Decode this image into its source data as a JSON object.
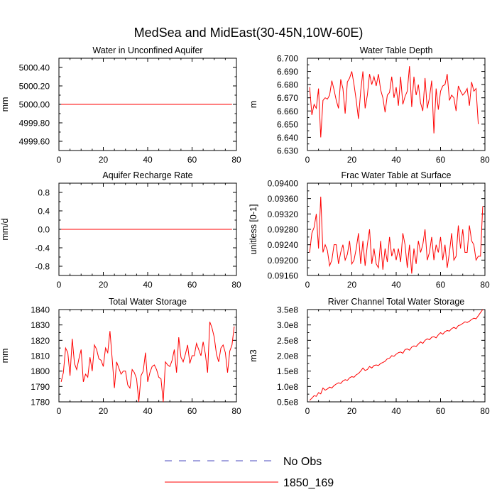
{
  "title": "MedSea and MidEast(30-45N,10W-60E)",
  "legend": [
    {
      "label": "No Obs",
      "color": "#4b4bbf",
      "dash": "dashed"
    },
    {
      "label": "1850_169",
      "color": "#ff0000",
      "dash": "solid"
    }
  ],
  "chart_data": [
    {
      "type": "line",
      "title": "Water in Unconfined Aquifer",
      "ylabel": "mm",
      "xlim": [
        0,
        80
      ],
      "xticks": [
        0,
        20,
        40,
        60,
        80
      ],
      "xtick_labels": [
        "0",
        "20",
        "40",
        "60",
        "80"
      ],
      "ylim": [
        4999.5,
        5000.5
      ],
      "yticks": [
        4999.6,
        4999.8,
        5000.0,
        5000.2,
        5000.4
      ],
      "ytick_labels": [
        "4999.60",
        "4999.80",
        "5000.00",
        "5000.20",
        "5000.40"
      ],
      "series": [
        {
          "name": "1850_169",
          "color": "#ff0000",
          "x": [
            1,
            78
          ],
          "values": [
            5000.0,
            5000.0
          ]
        }
      ]
    },
    {
      "type": "line",
      "title": "Water Table Depth",
      "ylabel": "m",
      "xlim": [
        0,
        80
      ],
      "xticks": [
        0,
        20,
        40,
        60,
        80
      ],
      "xtick_labels": [
        "0",
        "20",
        "40",
        "60",
        "80"
      ],
      "ylim": [
        6.63,
        6.7
      ],
      "yticks": [
        6.63,
        6.64,
        6.65,
        6.66,
        6.67,
        6.68,
        6.69,
        6.7
      ],
      "ytick_labels": [
        "6.630",
        "6.640",
        "6.650",
        "6.660",
        "6.670",
        "6.680",
        "6.690",
        "6.700"
      ],
      "series": [
        {
          "name": "1850_169",
          "color": "#ff0000",
          "x_start": 1,
          "values": [
            6.678,
            6.657,
            6.665,
            6.662,
            6.677,
            6.64,
            6.668,
            6.67,
            6.669,
            6.672,
            6.683,
            6.676,
            6.668,
            6.662,
            6.684,
            6.677,
            6.658,
            6.682,
            6.685,
            6.69,
            6.68,
            6.668,
            6.654,
            6.675,
            6.69,
            6.662,
            6.672,
            6.688,
            6.68,
            6.686,
            6.679,
            6.688,
            6.676,
            6.67,
            6.659,
            6.672,
            6.674,
            6.686,
            6.67,
            6.678,
            6.664,
            6.686,
            6.665,
            6.671,
            6.675,
            6.694,
            6.663,
            6.686,
            6.672,
            6.68,
            6.666,
            6.66,
            6.685,
            6.662,
            6.67,
            6.683,
            6.643,
            6.677,
            6.661,
            6.675,
            6.679,
            6.68,
            6.688,
            6.668,
            6.672,
            6.67,
            6.66,
            6.679,
            6.675,
            6.672,
            6.674,
            6.677,
            6.664,
            6.682,
            6.675,
            6.677,
            6.65
          ]
        }
      ]
    },
    {
      "type": "line",
      "title": "Aquifer Recharge Rate",
      "ylabel": "mm/d",
      "xlim": [
        0,
        80
      ],
      "xticks": [
        0,
        20,
        40,
        60,
        80
      ],
      "xtick_labels": [
        "0",
        "20",
        "40",
        "60",
        "80"
      ],
      "ylim": [
        -1.0,
        1.0
      ],
      "yticks": [
        -0.8,
        -0.4,
        0.0,
        0.4,
        0.8
      ],
      "ytick_labels": [
        "-0.8",
        "-0.4",
        "0.0",
        "0.4",
        "0.8"
      ],
      "series": [
        {
          "name": "1850_169",
          "color": "#ff0000",
          "x": [
            1,
            78
          ],
          "values": [
            0.0,
            0.0
          ]
        }
      ]
    },
    {
      "type": "line",
      "title": "Frac Water Table at Surface",
      "ylabel": "unitless [0-1]",
      "xlim": [
        0,
        80
      ],
      "xticks": [
        0,
        20,
        40,
        60,
        80
      ],
      "xtick_labels": [
        "0",
        "20",
        "40",
        "60",
        "80"
      ],
      "ylim": [
        0.0916,
        0.094
      ],
      "yticks": [
        0.0916,
        0.092,
        0.0924,
        0.0928,
        0.0932,
        0.0936,
        0.094
      ],
      "ytick_labels": [
        "0.09160",
        "0.09200",
        "0.09240",
        "0.09280",
        "0.09320",
        "0.09360",
        "0.09400"
      ],
      "series": [
        {
          "name": "1850_169",
          "color": "#ff0000",
          "x_start": 1,
          "values": [
            0.0922,
            0.0927,
            0.09285,
            0.0932,
            0.0923,
            0.09365,
            0.0922,
            0.0924,
            0.09225,
            0.09185,
            0.092,
            0.0924,
            0.0924,
            0.0919,
            0.0922,
            0.0924,
            0.092,
            0.09215,
            0.0925,
            0.0919,
            0.092,
            0.0923,
            0.0927,
            0.0919,
            0.0925,
            0.09185,
            0.0924,
            0.0928,
            0.0919,
            0.0923,
            0.0919,
            0.0918,
            0.0925,
            0.09175,
            0.0923,
            0.09195,
            0.0926,
            0.0921,
            0.0923,
            0.092,
            0.0923,
            0.09195,
            0.0927,
            0.0924,
            0.0918,
            0.0924,
            0.09165,
            0.0923,
            0.0919,
            0.0925,
            0.0922,
            0.0924,
            0.0928,
            0.092,
            0.0922,
            0.0926,
            0.092,
            0.0924,
            0.0922,
            0.0926,
            0.092,
            0.0924,
            0.0918,
            0.0922,
            0.0927,
            0.092,
            0.0921,
            0.0929,
            0.0923,
            0.0928,
            0.0922,
            0.0922,
            0.0929,
            0.0925,
            0.0924,
            0.092,
            0.0921,
            0.0921,
            0.0934
          ]
        }
      ]
    },
    {
      "type": "line",
      "title": "Total Water Storage",
      "ylabel": "mm",
      "xlim": [
        0,
        80
      ],
      "xticks": [
        0,
        20,
        40,
        60,
        80
      ],
      "xtick_labels": [
        "0",
        "20",
        "40",
        "60",
        "80"
      ],
      "ylim": [
        1780,
        1840
      ],
      "yticks": [
        1780,
        1790,
        1800,
        1810,
        1820,
        1830,
        1840
      ],
      "ytick_labels": [
        "1780",
        "1790",
        "1800",
        "1810",
        "1820",
        "1830",
        "1840"
      ],
      "series": [
        {
          "name": "1850_169",
          "color": "#ff0000",
          "x_start": 1,
          "values": [
            1793,
            1799,
            1815,
            1812,
            1797,
            1821,
            1805,
            1801,
            1808,
            1814,
            1793,
            1798,
            1796,
            1809,
            1800,
            1817,
            1814,
            1808,
            1807,
            1803,
            1815,
            1812,
            1826,
            1808,
            1789,
            1806,
            1802,
            1798,
            1800,
            1800,
            1791,
            1789,
            1801,
            1799,
            1795,
            1780,
            1797,
            1800,
            1812,
            1793,
            1799,
            1803,
            1804,
            1801,
            1796,
            1795,
            1780,
            1806,
            1804,
            1803,
            1807,
            1814,
            1799,
            1822,
            1809,
            1806,
            1811,
            1817,
            1805,
            1810,
            1810,
            1818,
            1814,
            1810,
            1819,
            1811,
            1799,
            1832,
            1828,
            1822,
            1811,
            1806,
            1815,
            1817,
            1812,
            1799,
            1813,
            1817,
            1829
          ]
        }
      ]
    },
    {
      "type": "line",
      "title": "River Channel Total Water Storage",
      "ylabel": "m3",
      "xlim": [
        0,
        80
      ],
      "xticks": [
        0,
        20,
        40,
        60,
        80
      ],
      "xtick_labels": [
        "0",
        "20",
        "40",
        "60",
        "80"
      ],
      "ylim": [
        50000000,
        350000000
      ],
      "yticks": [
        50000000,
        100000000,
        150000000,
        200000000,
        250000000,
        300000000,
        350000000
      ],
      "ytick_labels": [
        "0.5e8",
        "1.0e8",
        "1.5e8",
        "2.0e8",
        "2.5e8",
        "3.0e8",
        "3.5e8"
      ],
      "series": [
        {
          "name": "1850_169",
          "color": "#ff0000",
          "x_start": 1,
          "values": [
            55000000,
            62000000,
            70000000,
            68000000,
            80000000,
            76000000,
            95000000,
            88000000,
            92000000,
            98000000,
            95000000,
            103000000,
            108000000,
            112000000,
            110000000,
            118000000,
            122000000,
            120000000,
            128000000,
            132000000,
            130000000,
            138000000,
            142000000,
            150000000,
            160000000,
            152000000,
            155000000,
            165000000,
            160000000,
            168000000,
            170000000,
            168000000,
            175000000,
            178000000,
            182000000,
            190000000,
            192000000,
            200000000,
            198000000,
            205000000,
            210000000,
            212000000,
            208000000,
            220000000,
            222000000,
            218000000,
            228000000,
            232000000,
            230000000,
            238000000,
            245000000,
            240000000,
            250000000,
            255000000,
            252000000,
            260000000,
            262000000,
            258000000,
            268000000,
            275000000,
            270000000,
            278000000,
            282000000,
            280000000,
            288000000,
            292000000,
            288000000,
            298000000,
            300000000,
            305000000,
            310000000,
            308000000,
            312000000,
            318000000,
            322000000,
            320000000,
            330000000,
            340000000,
            350000000
          ]
        }
      ]
    }
  ]
}
